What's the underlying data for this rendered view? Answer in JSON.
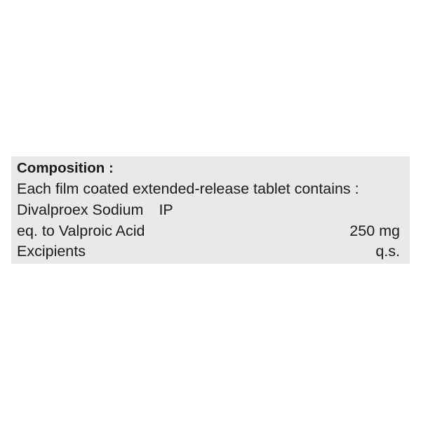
{
  "composition": {
    "heading": "Composition :",
    "intro": "Each film coated extended-release tablet contains :",
    "ingredient": "Divalproex Sodium",
    "ingredient_grade": "IP",
    "equivalent": "eq. to Valproic Acid",
    "equivalent_amount": "250 mg",
    "excipients": "Excipients",
    "excipients_amount": "q.s."
  }
}
